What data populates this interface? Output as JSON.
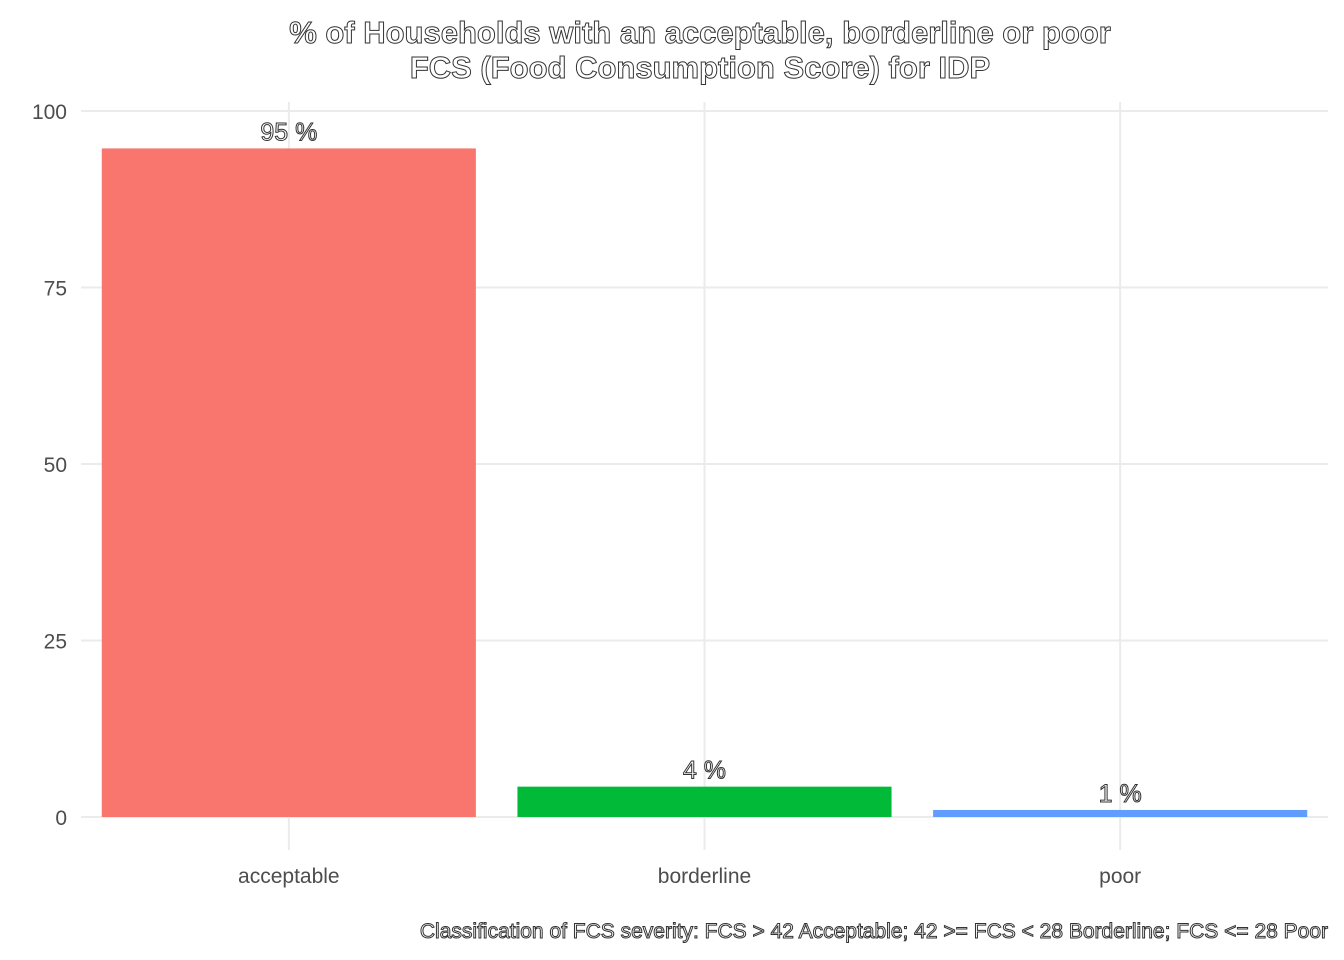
{
  "chart_data": {
    "type": "bar",
    "title_line1": "% of Households with an acceptable, borderline or poor",
    "title_line2": "FCS (Food Consumption Score) for IDP",
    "xlabel": "",
    "ylabel": "",
    "categories": [
      "acceptable",
      "borderline",
      "poor"
    ],
    "values": [
      94.7,
      4.3,
      1.0
    ],
    "data_labels": [
      "95 %",
      "4 %",
      "1 %"
    ],
    "colors": [
      "#F8766D",
      "#00BA38",
      "#619CFF"
    ],
    "ylim": [
      0,
      100
    ],
    "yticks": [
      0,
      25,
      50,
      75,
      100
    ],
    "ytick_labels": [
      "0",
      "25",
      "50",
      "75",
      "100"
    ],
    "grid": true,
    "legend": "none",
    "caption": "Classification of FCS severity: FCS > 42 Acceptable; 42 >= FCS < 28 Borderline; FCS <= 28 Poor"
  }
}
